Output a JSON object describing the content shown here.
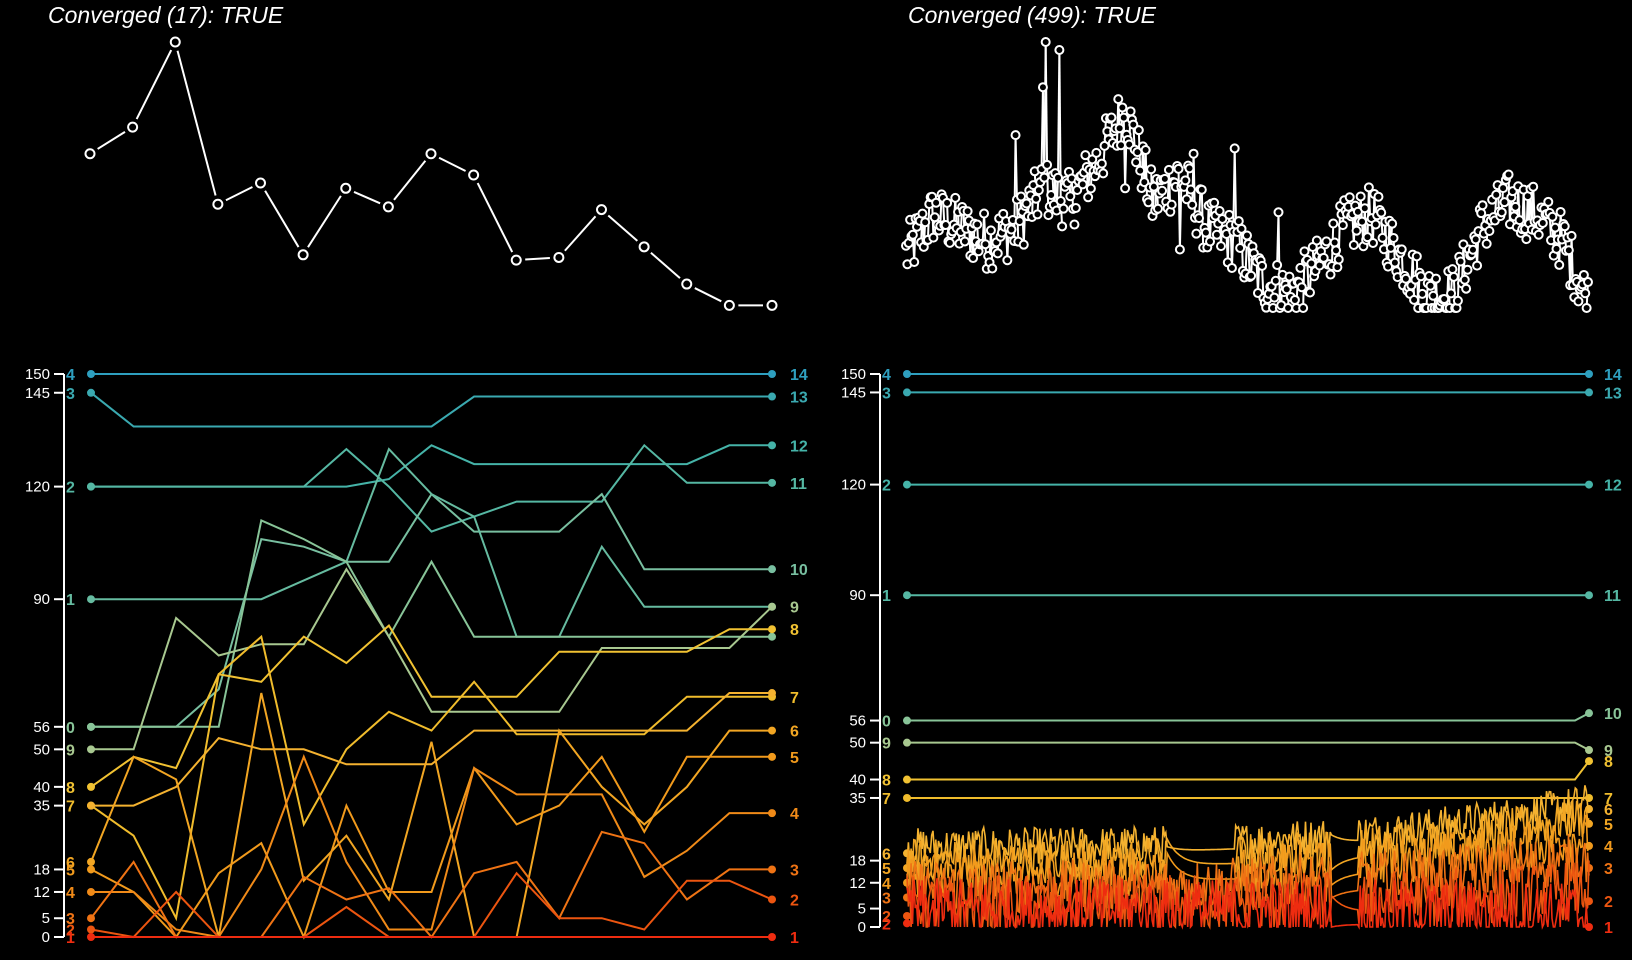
{
  "chart_data": [
    {
      "type": "line",
      "title": "Converged (17): TRUE",
      "description": "objective trace",
      "x": [
        1,
        2,
        3,
        4,
        5,
        6,
        7,
        8,
        9,
        10,
        11,
        12,
        13,
        14,
        15,
        16,
        17
      ],
      "values": [
        0.58,
        0.68,
        1.0,
        0.39,
        0.47,
        0.2,
        0.45,
        0.38,
        0.58,
        0.5,
        0.18,
        0.19,
        0.37,
        0.23,
        0.09,
        0.01,
        0.01
      ],
      "colors": {
        "line": "#ffffff",
        "marker_fill": "#000000"
      }
    },
    {
      "type": "scatter",
      "title": "Converged (499): TRUE",
      "description": "objective trace",
      "n_points": 499,
      "envelope_x": [
        0,
        20,
        40,
        60,
        80,
        100,
        120,
        140,
        160,
        180,
        200,
        220,
        240,
        260,
        280,
        300,
        320,
        340,
        360,
        380,
        400,
        420,
        440,
        460,
        480,
        499
      ],
      "envelope_values": [
        0.2,
        0.35,
        0.3,
        0.25,
        0.3,
        0.45,
        0.4,
        0.55,
        0.75,
        0.4,
        0.5,
        0.3,
        0.25,
        0.1,
        0.05,
        0.15,
        0.3,
        0.35,
        0.2,
        0.05,
        0.05,
        0.3,
        0.4,
        0.35,
        0.25,
        0.01
      ],
      "peaks": [
        [
          80,
          0.65
        ],
        [
          100,
          0.83
        ],
        [
          102,
          1.0
        ],
        [
          112,
          0.97
        ],
        [
          160,
          0.45
        ],
        [
          200,
          0.22
        ],
        [
          210,
          0.58
        ],
        [
          240,
          0.6
        ],
        [
          272,
          0.36
        ]
      ],
      "colors": {
        "line": "#ffffff",
        "marker_fill": "#000000"
      }
    },
    {
      "type": "line",
      "description": "parallel-coordinate rank trajectories",
      "yticks": [
        0,
        5,
        12,
        18,
        35,
        40,
        50,
        56,
        90,
        120,
        145,
        150
      ],
      "ylim": [
        0,
        150
      ],
      "n_steps": 17,
      "series": [
        {
          "start_label": "4",
          "end_label": "14",
          "color": "#2e9fbf",
          "values": [
            150,
            150,
            150,
            150,
            150,
            150,
            150,
            150,
            150,
            150,
            150,
            150,
            150,
            150,
            150,
            150,
            150
          ]
        },
        {
          "start_label": "3",
          "end_label": "13",
          "color": "#3aa9b0",
          "values": [
            145,
            136,
            136,
            136,
            136,
            136,
            136,
            136,
            136,
            144,
            144,
            144,
            144,
            144,
            144,
            144,
            144
          ]
        },
        {
          "start_label": "",
          "end_label": "12",
          "color": "#45b3a8",
          "values": [
            120,
            120,
            120,
            120,
            120,
            120,
            120,
            122,
            131,
            126,
            126,
            126,
            126,
            126,
            126,
            131,
            131
          ]
        },
        {
          "start_label": "2",
          "end_label": "11",
          "color": "#55b7a3",
          "values": [
            120,
            120,
            120,
            120,
            120,
            120,
            130,
            120,
            108,
            112,
            116,
            116,
            116,
            131,
            121,
            121,
            121
          ]
        },
        {
          "start_label": "",
          "end_label": "10",
          "color": "#78bfa0",
          "values": [
            56,
            56,
            56,
            66,
            106,
            104,
            100,
            100,
            118,
            108,
            108,
            108,
            118,
            98,
            98,
            98,
            98
          ]
        },
        {
          "start_label": "1",
          "end_label": "",
          "color": "#66bba0",
          "values": [
            90,
            90,
            90,
            90,
            90,
            95,
            100,
            130,
            118,
            112,
            80,
            80,
            104,
            88,
            88,
            88,
            88
          ]
        },
        {
          "start_label": "0",
          "end_label": "",
          "color": "#88c498",
          "values": [
            56,
            56,
            56,
            56,
            111,
            106,
            100,
            80,
            100,
            80,
            80,
            80,
            80,
            80,
            80,
            80,
            80
          ]
        },
        {
          "start_label": "9",
          "end_label": "9",
          "color": "#a8c890",
          "values": [
            50,
            50,
            85,
            75,
            78,
            78,
            98,
            80,
            60,
            60,
            60,
            60,
            77,
            77,
            77,
            77,
            88
          ]
        },
        {
          "start_label": "8",
          "end_label": "8",
          "color": "#f1c232",
          "values": [
            40,
            48,
            45,
            70,
            68,
            80,
            73,
            83,
            64,
            64,
            64,
            76,
            76,
            76,
            76,
            82,
            82
          ]
        },
        {
          "start_label": "7",
          "end_label": "7",
          "color": "#f0bc2c",
          "values": [
            35,
            27,
            5,
            70,
            80,
            30,
            50,
            60,
            55,
            68,
            54,
            54,
            54,
            54,
            64,
            64,
            64
          ]
        },
        {
          "start_label": "",
          "end_label": "",
          "color": "#f4b230",
          "values": [
            35,
            35,
            40,
            53,
            50,
            50,
            46,
            46,
            46,
            55,
            55,
            55,
            55,
            55,
            55,
            65,
            65
          ]
        },
        {
          "start_label": "6",
          "end_label": "6",
          "color": "#f2a623",
          "values": [
            20,
            48,
            42,
            0,
            65,
            15,
            27,
            10,
            52,
            0,
            0,
            55,
            40,
            30,
            40,
            55,
            55
          ]
        },
        {
          "start_label": "5",
          "end_label": "5",
          "color": "#f19a1c",
          "values": [
            18,
            12,
            0,
            17,
            25,
            0,
            35,
            12,
            12,
            45,
            30,
            35,
            48,
            28,
            48,
            48,
            48
          ]
        },
        {
          "start_label": "4",
          "end_label": "4",
          "color": "#f08a18",
          "values": [
            12,
            12,
            2,
            0,
            18,
            48,
            20,
            2,
            2,
            45,
            38,
            38,
            38,
            16,
            23,
            33,
            33
          ]
        },
        {
          "start_label": "3",
          "end_label": "3",
          "color": "#ef7314",
          "values": [
            5,
            20,
            0,
            0,
            0,
            16,
            10,
            13,
            0,
            17,
            20,
            5,
            28,
            25,
            10,
            18,
            18
          ]
        },
        {
          "start_label": "2",
          "end_label": "2",
          "color": "#ec5510",
          "values": [
            2,
            0,
            12,
            0,
            0,
            0,
            8,
            0,
            0,
            0,
            17,
            5,
            5,
            2,
            15,
            15,
            10
          ]
        },
        {
          "start_label": "1",
          "end_label": "1",
          "color": "#ee2c10",
          "values": [
            0,
            0,
            0,
            0,
            0,
            0,
            0,
            0,
            0,
            0,
            0,
            0,
            0,
            0,
            0,
            0,
            0
          ]
        }
      ]
    },
    {
      "type": "line",
      "description": "parallel-coordinate rank trajectories (499 steps)",
      "yticks": [
        0,
        5,
        12,
        18,
        35,
        40,
        50,
        56,
        90,
        120,
        145,
        150
      ],
      "ylim": [
        0,
        150
      ],
      "n_steps": 499,
      "flat_series": [
        {
          "start_label": "4",
          "end_label": "14",
          "color": "#2e9fbf",
          "value": 150
        },
        {
          "start_label": "3",
          "end_label": "13",
          "color": "#3aa9b0",
          "value": 145
        },
        {
          "start_label": "2",
          "end_label": "12",
          "color": "#45b3a8",
          "value": 120
        },
        {
          "start_label": "1",
          "end_label": "11",
          "color": "#55b7a3",
          "value": 90
        },
        {
          "start_label": "0",
          "end_label": "10",
          "color": "#88c498",
          "value": 56,
          "end_value": 58
        },
        {
          "start_label": "9",
          "end_label": "9",
          "color": "#a8c890",
          "value": 50,
          "end_value": 48
        },
        {
          "start_label": "8",
          "end_label": "8",
          "color": "#f1c232",
          "value": 40,
          "end_value": 45
        },
        {
          "start_label": "7",
          "end_label": "7",
          "color": "#f0bc2c",
          "value": 35,
          "end_value": 35
        }
      ],
      "noisy_series": [
        {
          "start_label": "6",
          "end_label": "6",
          "color": "#f4b230",
          "base": 20,
          "end": 32
        },
        {
          "start_label": "5",
          "end_label": "5",
          "color": "#f2a623",
          "base": 16,
          "end": 28
        },
        {
          "start_label": "4",
          "end_label": "4",
          "color": "#f19a1c",
          "base": 12,
          "end": 22
        },
        {
          "start_label": "3",
          "end_label": "3",
          "color": "#ef7314",
          "base": 8,
          "end": 16
        },
        {
          "start_label": "2",
          "end_label": "2",
          "color": "#ec5510",
          "base": 3,
          "end": 7
        },
        {
          "start_label": "2",
          "end_label": "1",
          "color": "#ee2c10",
          "base": 1,
          "end": 0
        }
      ]
    }
  ]
}
